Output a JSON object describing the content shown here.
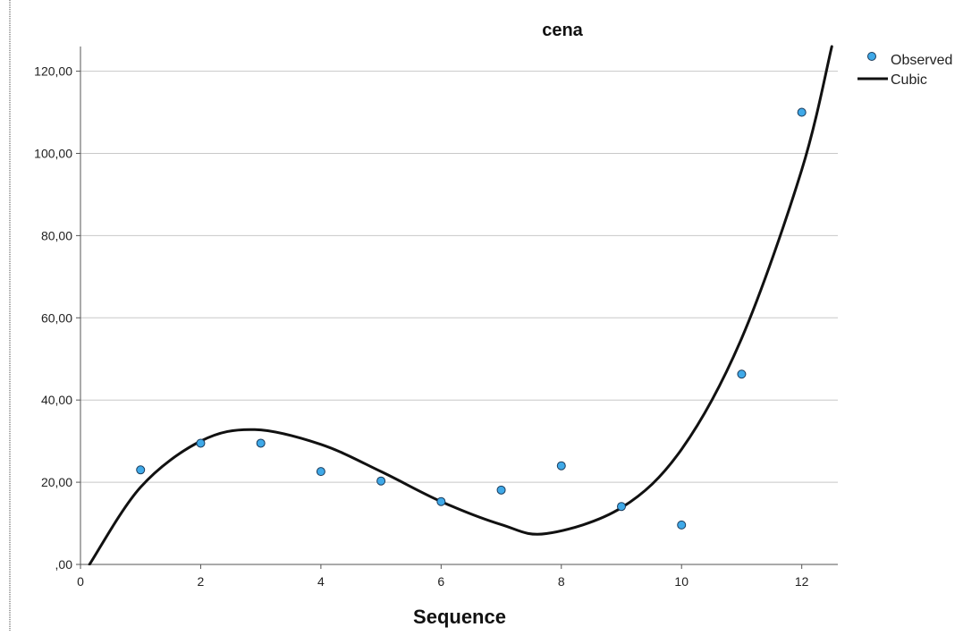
{
  "chart_data": {
    "type": "scatter",
    "title": "cena",
    "xlabel": "Sequence",
    "ylabel": "",
    "xlim": [
      0,
      12.6
    ],
    "ylim": [
      0,
      126
    ],
    "x_ticks": [
      0,
      2,
      4,
      6,
      8,
      10,
      12
    ],
    "x_tick_labels": [
      "0",
      "2",
      "4",
      "6",
      "8",
      "10",
      "12"
    ],
    "y_ticks": [
      0,
      20,
      40,
      60,
      80,
      100,
      120
    ],
    "y_tick_labels": [
      ",00",
      "20,00",
      "40,00",
      "60,00",
      "80,00",
      "100,00",
      "120,00"
    ],
    "grid": "horizontal",
    "legend_position": "top-right",
    "series": [
      {
        "name": "Observed",
        "kind": "points",
        "color": "#3fa9e8",
        "x": [
          1,
          2,
          3,
          4,
          5,
          6,
          7,
          8,
          9,
          10,
          11,
          12
        ],
        "y": [
          23.0,
          29.5,
          29.5,
          22.6,
          20.3,
          15.3,
          18.1,
          24.0,
          14.1,
          9.6,
          46.3,
          110.0
        ]
      },
      {
        "name": "Cubic",
        "kind": "fit-curve",
        "color": "#111111",
        "x": [
          0.15,
          1,
          2,
          2.9,
          4,
          5,
          6,
          7,
          7.75,
          9,
          10,
          11,
          12,
          12.5
        ],
        "y": [
          0,
          18.8,
          30.0,
          32.8,
          29.2,
          22.6,
          15.3,
          9.7,
          7.5,
          13.8,
          28.0,
          55.0,
          96.0,
          126.0
        ]
      }
    ]
  }
}
